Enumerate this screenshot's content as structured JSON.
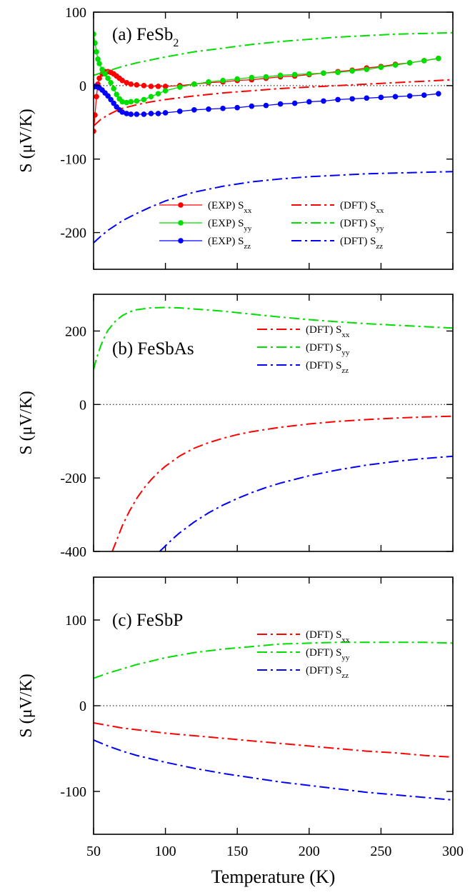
{
  "chart_data": [
    {
      "type": "line",
      "panel_label": "(a) FeSb",
      "panel_label_sub": "2",
      "ylabel": "S (μV/K)",
      "xlim": [
        50,
        300
      ],
      "ylim": [
        -250,
        100
      ],
      "yticks": [
        -200,
        -100,
        0,
        100
      ],
      "ytick_labels": [
        "-200",
        "-100",
        "0",
        "100"
      ],
      "xticks": [
        50,
        100,
        150,
        200,
        250,
        300
      ],
      "zero_line": true,
      "legend_position": "bottom-right",
      "legend_columns": 2,
      "series": [
        {
          "name": "(EXP) S",
          "sub": "xx",
          "color": "#ff0000",
          "style": "marker-line",
          "x": [
            50,
            51,
            52,
            53,
            54,
            56,
            58,
            60,
            62,
            64,
            66,
            68,
            70,
            73,
            76,
            80,
            85,
            90,
            95,
            100,
            110,
            120,
            130,
            140,
            150,
            160,
            170,
            180,
            190,
            200,
            210,
            220,
            230,
            240,
            250,
            260,
            270,
            280,
            290
          ],
          "y": [
            -62,
            -40,
            -15,
            2,
            10,
            16,
            19,
            19,
            18,
            16,
            13,
            10,
            7,
            4,
            2,
            1,
            0,
            -1,
            -1,
            -1,
            0,
            2,
            4,
            5,
            7,
            8,
            10,
            12,
            13,
            15,
            17,
            19,
            21,
            24,
            26,
            29,
            31,
            34,
            37
          ]
        },
        {
          "name": "(EXP) S",
          "sub": "yy",
          "color": "#00dd00",
          "style": "marker-line",
          "x": [
            50,
            51,
            52,
            53,
            54,
            56,
            58,
            60,
            62,
            64,
            66,
            68,
            70,
            73,
            76,
            80,
            85,
            90,
            95,
            100,
            110,
            120,
            130,
            140,
            150,
            160,
            170,
            180,
            190,
            200,
            210,
            220,
            230,
            240,
            250,
            260,
            270,
            280,
            290
          ],
          "y": [
            70,
            58,
            46,
            36,
            30,
            22,
            16,
            10,
            4,
            -4,
            -12,
            -18,
            -22,
            -23,
            -22,
            -21,
            -19,
            -15,
            -11,
            -7,
            -2,
            2,
            5,
            7,
            9,
            11,
            12,
            14,
            15,
            16,
            17,
            18,
            20,
            22,
            25,
            28,
            31,
            34,
            37
          ]
        },
        {
          "name": "(EXP) S",
          "sub": "zz",
          "color": "#0000ff",
          "style": "marker-line",
          "x": [
            50,
            51,
            52,
            53,
            54,
            56,
            58,
            60,
            62,
            64,
            66,
            68,
            70,
            73,
            76,
            80,
            85,
            90,
            95,
            100,
            110,
            120,
            130,
            140,
            150,
            160,
            170,
            180,
            190,
            200,
            210,
            220,
            230,
            240,
            250,
            260,
            270,
            280,
            290
          ],
          "y": [
            -2,
            -1,
            -1,
            -2,
            -3,
            -6,
            -10,
            -14,
            -19,
            -24,
            -29,
            -33,
            -36,
            -38,
            -39,
            -39,
            -39,
            -38,
            -38,
            -37,
            -35,
            -33,
            -32,
            -31,
            -30,
            -28,
            -27,
            -25,
            -24,
            -22,
            -21,
            -19,
            -18,
            -17,
            -16,
            -15,
            -14,
            -13,
            -11
          ]
        },
        {
          "name": "(DFT) S",
          "sub": "xx",
          "color": "#ff0000",
          "style": "dashdot",
          "x": [
            50,
            55,
            60,
            65,
            70,
            80,
            90,
            100,
            120,
            140,
            160,
            180,
            200,
            220,
            240,
            260,
            280,
            300
          ],
          "y": [
            -55,
            -46,
            -40,
            -35,
            -31,
            -26,
            -22,
            -19,
            -14,
            -10,
            -7,
            -4,
            -2,
            0,
            2,
            4,
            6,
            8
          ]
        },
        {
          "name": "(DFT) S",
          "sub": "yy",
          "color": "#00dd00",
          "style": "dashdot",
          "x": [
            50,
            60,
            70,
            80,
            90,
            100,
            120,
            140,
            160,
            180,
            200,
            220,
            240,
            260,
            280,
            300
          ],
          "y": [
            14,
            20,
            26,
            31,
            35,
            39,
            46,
            51,
            56,
            60,
            63,
            66,
            68,
            70,
            71,
            72
          ]
        },
        {
          "name": "(DFT) S",
          "sub": "zz",
          "color": "#0000ff",
          "style": "dashdot",
          "x": [
            50,
            55,
            60,
            70,
            80,
            90,
            100,
            110,
            120,
            140,
            160,
            180,
            200,
            220,
            240,
            260,
            280,
            300
          ],
          "y": [
            -214,
            -205,
            -197,
            -184,
            -174,
            -165,
            -157,
            -151,
            -145,
            -137,
            -131,
            -127,
            -124,
            -122,
            -120,
            -119,
            -118,
            -117
          ]
        }
      ]
    },
    {
      "type": "line",
      "panel_label": "(b) FeSbAs",
      "panel_label_sub": "",
      "ylabel": "S (μV/K)",
      "xlim": [
        50,
        300
      ],
      "ylim": [
        -400,
        300
      ],
      "yticks": [
        -400,
        -200,
        0,
        200
      ],
      "ytick_labels": [
        "-400",
        "-200",
        "0",
        "200"
      ],
      "xticks": [
        50,
        100,
        150,
        200,
        250,
        300
      ],
      "zero_line": true,
      "legend_position": "top-right",
      "legend_columns": 1,
      "series": [
        {
          "name": "(DFT) S",
          "sub": "xx",
          "color": "#ff0000",
          "style": "dashdot",
          "x": [
            63,
            65,
            70,
            75,
            80,
            85,
            90,
            95,
            100,
            110,
            120,
            130,
            140,
            150,
            160,
            180,
            200,
            220,
            240,
            260,
            280,
            300
          ],
          "y": [
            -400,
            -380,
            -330,
            -290,
            -256,
            -228,
            -205,
            -185,
            -168,
            -140,
            -119,
            -104,
            -92,
            -82,
            -74,
            -62,
            -53,
            -46,
            -41,
            -37,
            -34,
            -32
          ]
        },
        {
          "name": "(DFT) S",
          "sub": "yy",
          "color": "#00dd00",
          "style": "dashdot",
          "x": [
            50,
            52,
            55,
            58,
            60,
            65,
            70,
            75,
            80,
            90,
            100,
            110,
            120,
            140,
            160,
            180,
            200,
            220,
            240,
            260,
            280,
            300
          ],
          "y": [
            95,
            125,
            160,
            187,
            202,
            226,
            242,
            252,
            258,
            263,
            264,
            263,
            260,
            254,
            246,
            238,
            231,
            225,
            220,
            216,
            212,
            208
          ]
        },
        {
          "name": "(DFT) S",
          "sub": "zz",
          "color": "#0000ff",
          "style": "dashdot",
          "x": [
            96,
            100,
            105,
            110,
            120,
            130,
            140,
            150,
            160,
            170,
            180,
            200,
            220,
            240,
            260,
            280,
            300
          ],
          "y": [
            -400,
            -385,
            -366,
            -349,
            -320,
            -295,
            -274,
            -256,
            -240,
            -226,
            -214,
            -194,
            -178,
            -165,
            -155,
            -147,
            -141
          ]
        }
      ]
    },
    {
      "type": "line",
      "panel_label": "(c) FeSbP",
      "panel_label_sub": "",
      "ylabel": "S (μV/K)",
      "xlabel": "Temperature (K)",
      "xlim": [
        50,
        300
      ],
      "ylim": [
        -150,
        150
      ],
      "yticks": [
        -100,
        0,
        100
      ],
      "ytick_labels": [
        "-100",
        "0",
        "100"
      ],
      "xticks": [
        50,
        100,
        150,
        200,
        250,
        300
      ],
      "xtick_labels": [
        "50",
        "100",
        "150",
        "200",
        "250",
        "300"
      ],
      "zero_line": true,
      "legend_position": "right",
      "legend_columns": 1,
      "series": [
        {
          "name": "(DFT) S",
          "sub": "xx",
          "color": "#ff0000",
          "style": "dashdot",
          "x": [
            50,
            60,
            70,
            80,
            90,
            100,
            120,
            140,
            160,
            180,
            200,
            220,
            240,
            260,
            280,
            300
          ],
          "y": [
            -20,
            -23,
            -26,
            -28,
            -30,
            -32,
            -35,
            -38,
            -41,
            -44,
            -47,
            -50,
            -53,
            -55,
            -58,
            -60
          ]
        },
        {
          "name": "(DFT) S",
          "sub": "yy",
          "color": "#00dd00",
          "style": "dashdot",
          "x": [
            50,
            60,
            70,
            80,
            90,
            100,
            120,
            140,
            160,
            180,
            200,
            220,
            240,
            260,
            280,
            300
          ],
          "y": [
            32,
            38,
            43,
            48,
            52,
            56,
            62,
            66,
            69,
            72,
            73,
            74,
            74,
            74,
            74,
            73
          ]
        },
        {
          "name": "(DFT) S",
          "sub": "zz",
          "color": "#0000ff",
          "style": "dashdot",
          "x": [
            50,
            60,
            70,
            80,
            90,
            100,
            120,
            140,
            160,
            180,
            200,
            220,
            240,
            260,
            280,
            300
          ],
          "y": [
            -40,
            -47,
            -53,
            -58,
            -62,
            -66,
            -73,
            -79,
            -84,
            -89,
            -93,
            -97,
            -101,
            -104,
            -107,
            -110
          ]
        }
      ]
    }
  ]
}
